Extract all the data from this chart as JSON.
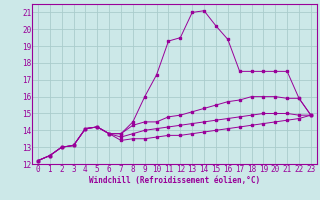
{
  "background_color": "#cce8e8",
  "grid_color": "#aacccc",
  "line_color": "#990099",
  "xlim": [
    -0.5,
    23.5
  ],
  "ylim": [
    12,
    21.5
  ],
  "xlabel": "Windchill (Refroidissement éolien,°C)",
  "xlabel_fontsize": 5.5,
  "tick_fontsize": 5.5,
  "xticks": [
    0,
    1,
    2,
    3,
    4,
    5,
    6,
    7,
    8,
    9,
    10,
    11,
    12,
    13,
    14,
    15,
    16,
    17,
    18,
    19,
    20,
    21,
    22,
    23
  ],
  "yticks": [
    12,
    13,
    14,
    15,
    16,
    17,
    18,
    19,
    20,
    21
  ],
  "series": [
    [
      12.2,
      12.5,
      13.0,
      13.1,
      14.1,
      14.2,
      13.8,
      13.8,
      14.5,
      16.0,
      17.3,
      19.3,
      19.5,
      21.0,
      21.1,
      20.2,
      19.4,
      17.5,
      17.5,
      17.5,
      17.5,
      17.5,
      15.9,
      14.9
    ],
    [
      12.2,
      12.5,
      13.0,
      13.1,
      14.1,
      14.2,
      13.8,
      13.8,
      14.3,
      14.5,
      14.5,
      14.8,
      14.9,
      15.1,
      15.3,
      15.5,
      15.7,
      15.8,
      16.0,
      16.0,
      16.0,
      15.9,
      15.9,
      14.9
    ],
    [
      12.2,
      12.5,
      13.0,
      13.1,
      14.1,
      14.2,
      13.8,
      13.6,
      13.8,
      14.0,
      14.1,
      14.2,
      14.3,
      14.4,
      14.5,
      14.6,
      14.7,
      14.8,
      14.9,
      15.0,
      15.0,
      15.0,
      14.9,
      14.9
    ],
    [
      12.2,
      12.5,
      13.0,
      13.1,
      14.1,
      14.2,
      13.8,
      13.4,
      13.5,
      13.5,
      13.6,
      13.7,
      13.7,
      13.8,
      13.9,
      14.0,
      14.1,
      14.2,
      14.3,
      14.4,
      14.5,
      14.6,
      14.7,
      14.9
    ]
  ]
}
